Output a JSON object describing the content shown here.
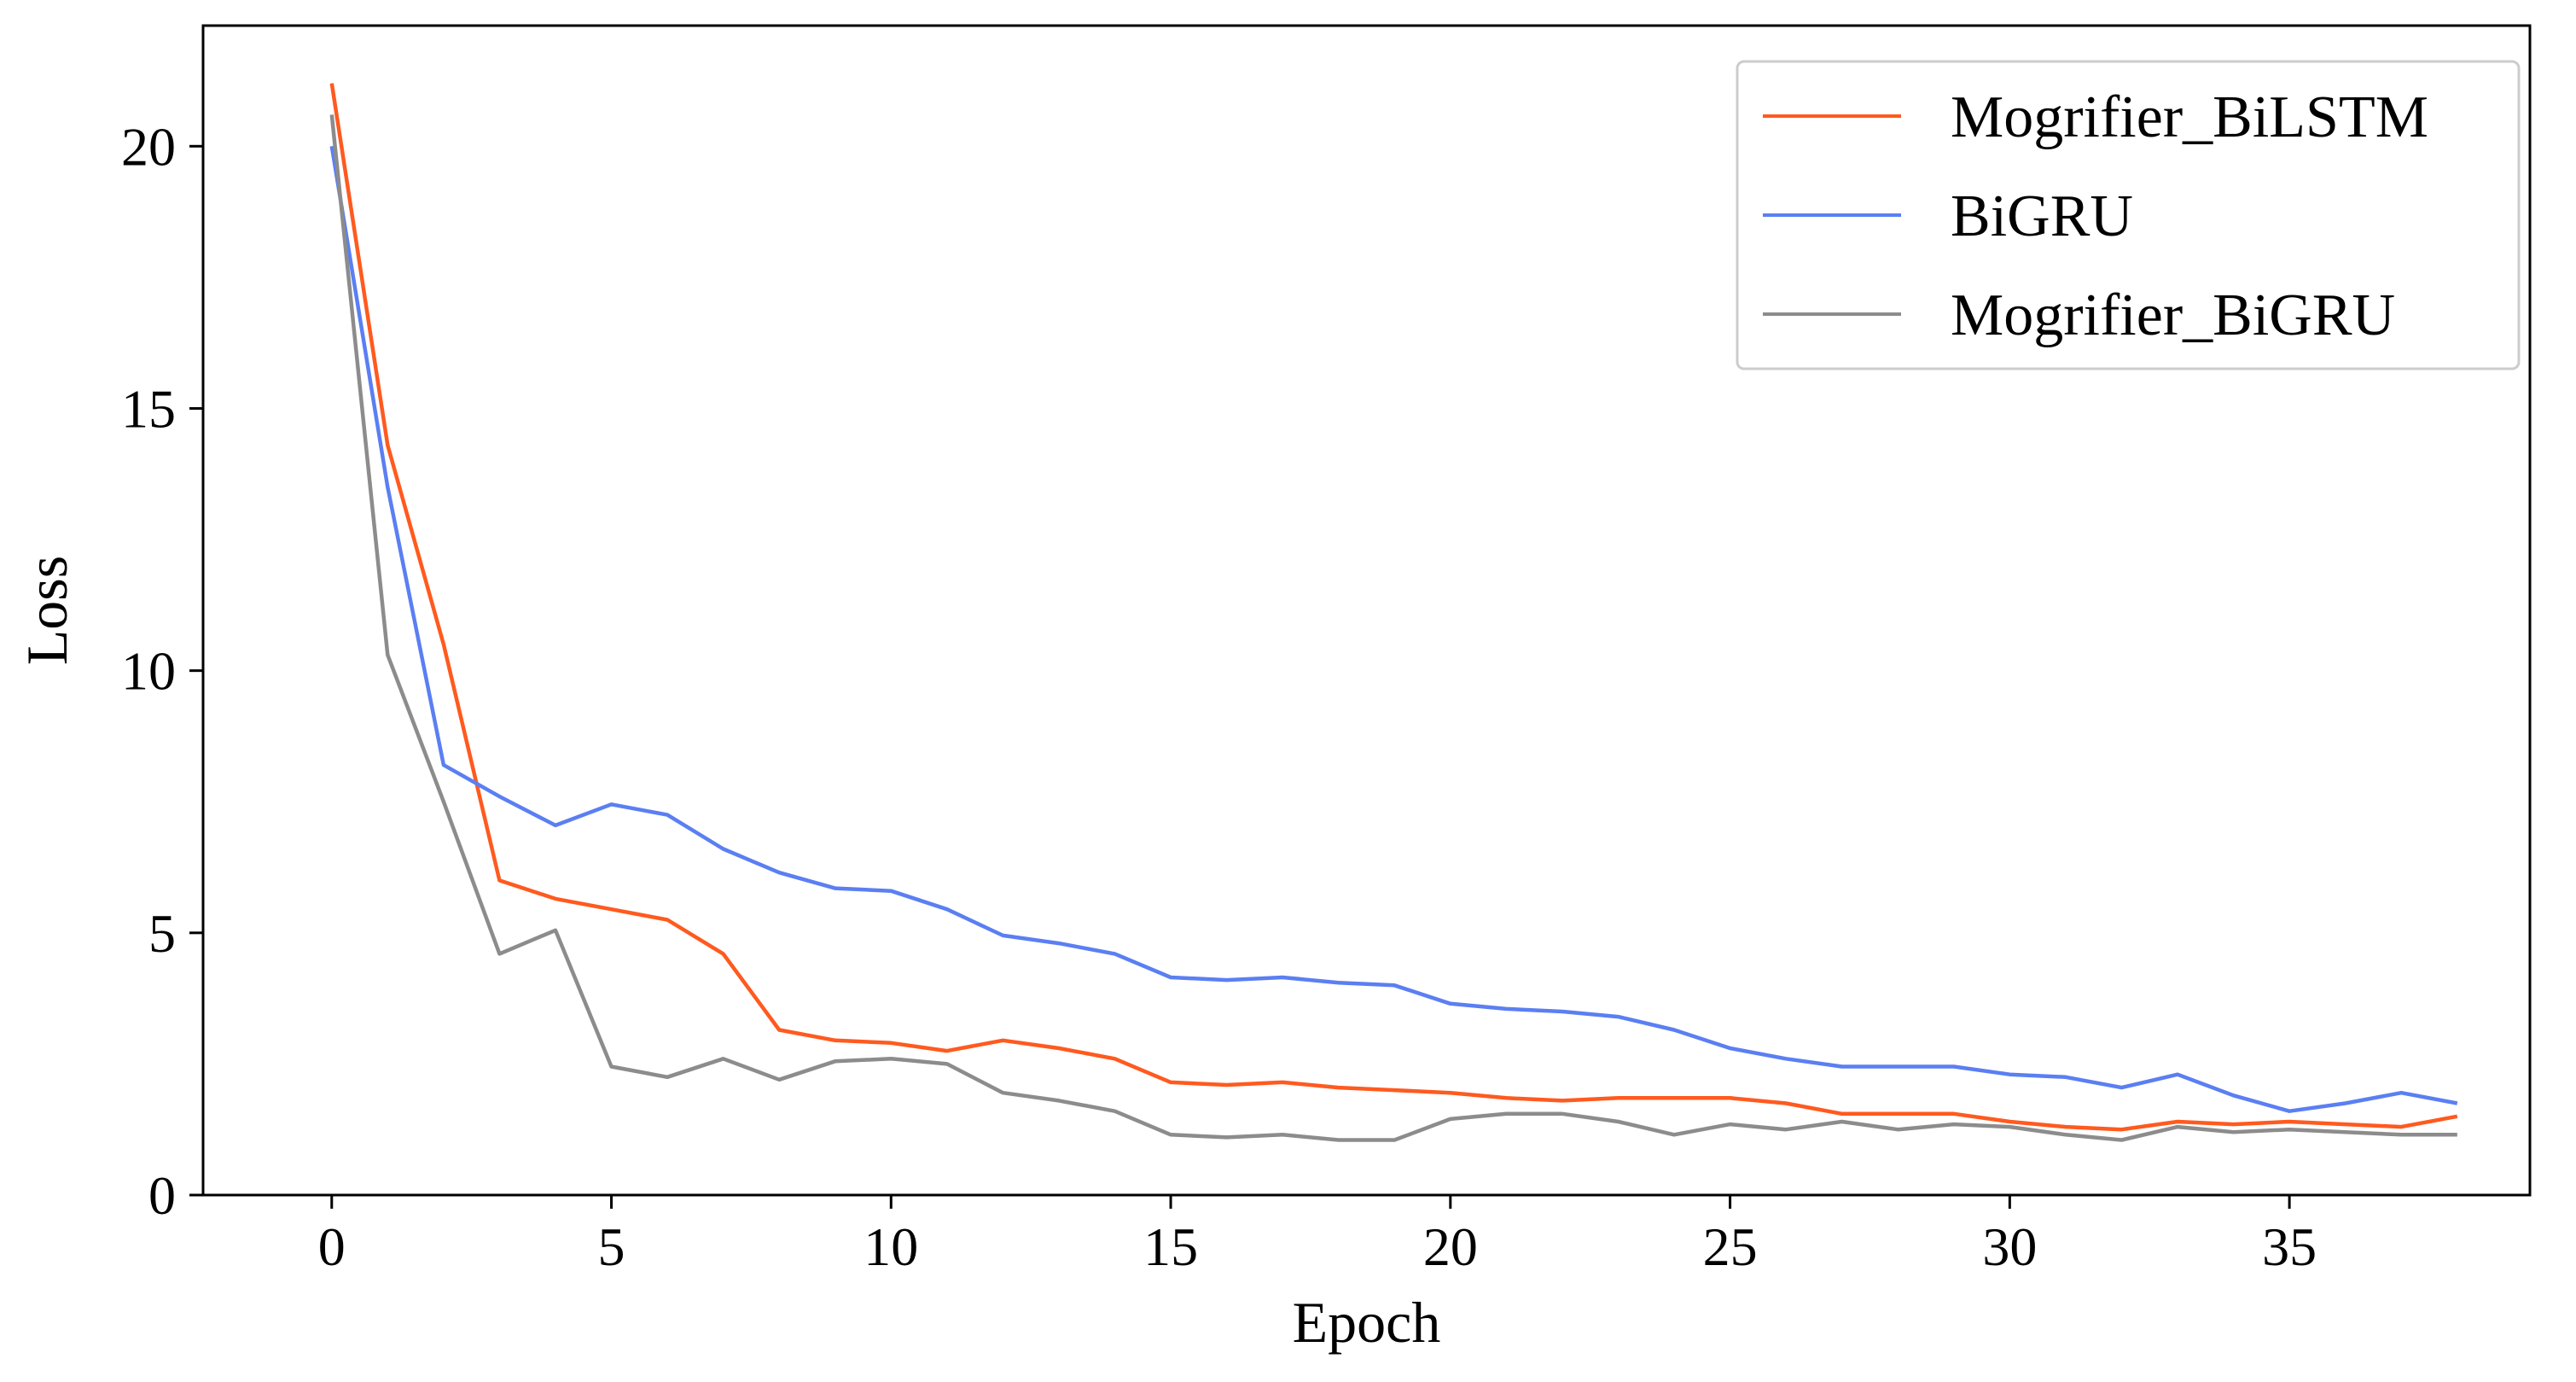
{
  "chart_data": {
    "type": "line",
    "title": "",
    "xlabel": "Epoch",
    "ylabel": "Loss",
    "xlim": [
      -2.3,
      39.3
    ],
    "ylim": [
      0,
      22.3
    ],
    "xticks": [
      0,
      5,
      10,
      15,
      20,
      25,
      30,
      35
    ],
    "yticks": [
      0,
      5,
      10,
      15,
      20
    ],
    "grid": false,
    "legend_position": "top-right",
    "x": [
      0,
      1,
      2,
      3,
      4,
      5,
      6,
      7,
      8,
      9,
      10,
      11,
      12,
      13,
      14,
      15,
      16,
      17,
      18,
      19,
      20,
      21,
      22,
      23,
      24,
      25,
      26,
      27,
      28,
      29,
      30,
      31,
      32,
      33,
      34,
      35,
      36,
      37,
      38
    ],
    "series": [
      {
        "name": "Mogrifier_BiLSTM",
        "color": "#ff5a1f",
        "values": [
          21.2,
          14.3,
          10.5,
          6.0,
          5.65,
          5.45,
          5.25,
          4.6,
          3.15,
          2.95,
          2.9,
          2.75,
          2.95,
          2.8,
          2.6,
          2.15,
          2.1,
          2.15,
          2.05,
          2.0,
          1.95,
          1.85,
          1.8,
          1.85,
          1.85,
          1.85,
          1.75,
          1.55,
          1.55,
          1.55,
          1.4,
          1.3,
          1.25,
          1.4,
          1.35,
          1.4,
          1.35,
          1.3,
          1.5
        ]
      },
      {
        "name": "BiGRU",
        "color": "#5b7ff2",
        "values": [
          20.0,
          13.5,
          8.2,
          7.6,
          7.05,
          7.45,
          7.25,
          6.6,
          6.15,
          5.85,
          5.8,
          5.45,
          4.95,
          4.8,
          4.6,
          4.15,
          4.1,
          4.15,
          4.05,
          4.0,
          3.65,
          3.55,
          3.5,
          3.4,
          3.15,
          2.8,
          2.6,
          2.45,
          2.45,
          2.45,
          2.3,
          2.25,
          2.05,
          2.3,
          1.9,
          1.6,
          1.75,
          1.95,
          1.75
        ]
      },
      {
        "name": "Mogrifier_BiGRU",
        "color": "#8c8c8c",
        "values": [
          20.6,
          10.3,
          7.5,
          4.6,
          5.05,
          2.45,
          2.25,
          2.6,
          2.2,
          2.55,
          2.6,
          2.5,
          1.95,
          1.8,
          1.6,
          1.15,
          1.1,
          1.15,
          1.05,
          1.05,
          1.45,
          1.55,
          1.55,
          1.4,
          1.15,
          1.35,
          1.25,
          1.4,
          1.25,
          1.35,
          1.3,
          1.15,
          1.05,
          1.3,
          1.2,
          1.25,
          1.2,
          1.15,
          1.15
        ]
      }
    ]
  }
}
